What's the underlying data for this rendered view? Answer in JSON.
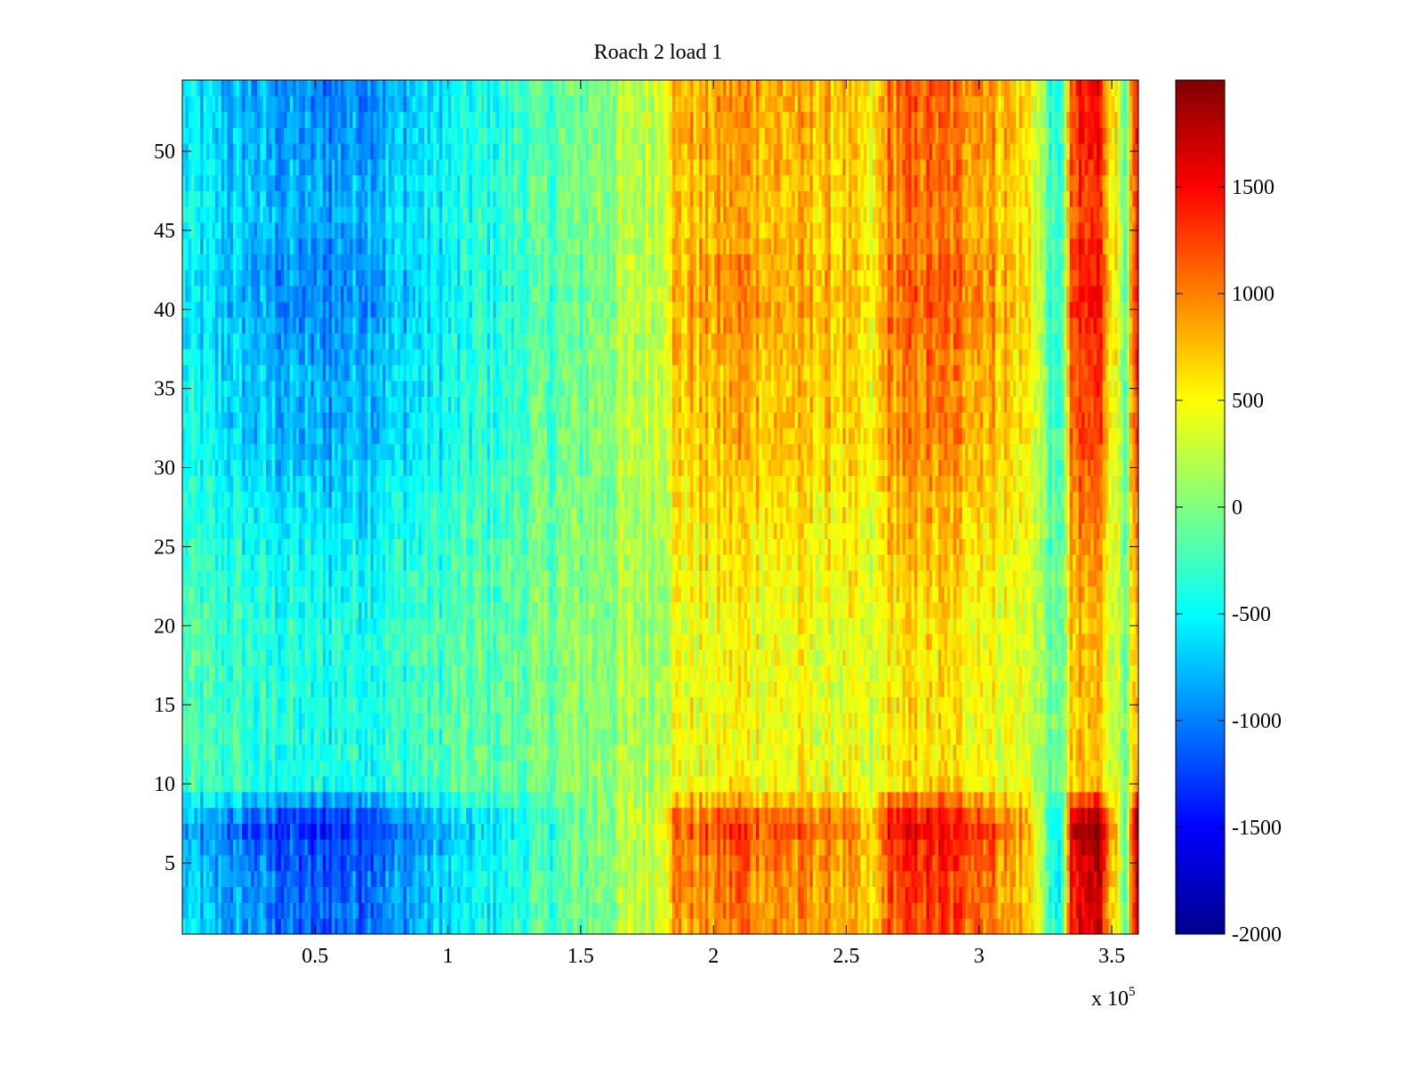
{
  "chart_data": {
    "type": "heatmap",
    "title": "Roach 2 load 1",
    "xlabel": "",
    "ylabel": "",
    "x_multiplier_label": {
      "base": "x 10",
      "exponent": "5"
    },
    "x_range": [
      0,
      3.6
    ],
    "x_range_units_note": "",
    "y_range": [
      0.5,
      54.5
    ],
    "x_ticks": [
      0.5,
      1,
      1.5,
      2,
      2.5,
      3,
      3.5
    ],
    "x_tick_labels": [
      "0.5",
      "1",
      "1.5",
      "2",
      "2.5",
      "3",
      "3.5"
    ],
    "y_ticks": [
      5,
      10,
      15,
      20,
      25,
      30,
      35,
      40,
      45,
      50
    ],
    "y_tick_labels": [
      "5",
      "10",
      "15",
      "20",
      "25",
      "30",
      "35",
      "40",
      "45",
      "50"
    ],
    "colormap": "jet",
    "color_range": [
      -2000,
      2000
    ],
    "colorbar_ticks": [
      1500,
      1000,
      500,
      0,
      -500,
      -1000,
      -1500,
      -2000
    ],
    "colorbar_tick_labels": [
      "1500",
      "1000",
      "500",
      "0",
      "-500",
      "-1000",
      "-1500",
      "-2000"
    ],
    "grid": false,
    "rows": 54,
    "x_profile": {
      "x": [
        0,
        0.2,
        0.4,
        0.5,
        0.6,
        0.8,
        1.0,
        1.2,
        1.5,
        1.8,
        1.85,
        2.0,
        2.1,
        2.2,
        2.5,
        2.6,
        2.65,
        2.8,
        3.0,
        3.2,
        3.3,
        3.35,
        3.45,
        3.55,
        3.6
      ],
      "value": [
        -500,
        -650,
        -800,
        -850,
        -800,
        -650,
        -450,
        -300,
        -50,
        300,
        700,
        750,
        850,
        750,
        650,
        400,
        900,
        1000,
        900,
        500,
        -500,
        1100,
        1300,
        0,
        1400
      ]
    },
    "row_profile": {
      "rows": [
        1,
        4,
        6,
        7,
        8,
        9,
        10,
        12,
        20,
        28,
        32,
        36,
        40,
        42,
        46,
        50,
        54
      ],
      "amplification": [
        1.3,
        1.35,
        1.45,
        1.6,
        1.45,
        1.05,
        0.6,
        0.55,
        0.55,
        0.8,
        1.0,
        1.0,
        1.15,
        1.15,
        1.0,
        1.1,
        1.15
      ]
    }
  }
}
